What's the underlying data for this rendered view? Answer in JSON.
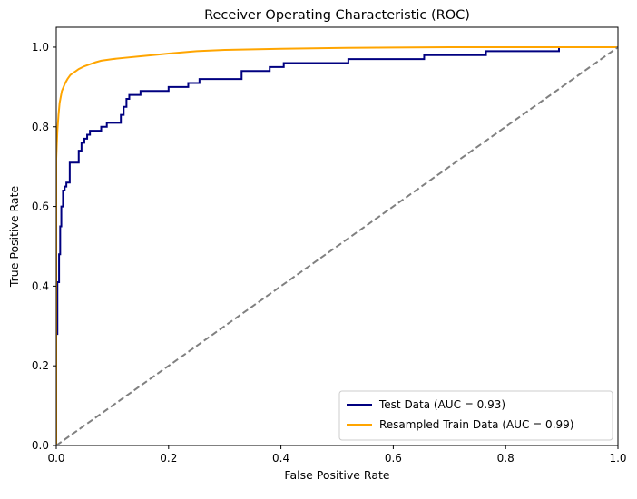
{
  "chart_data": {
    "type": "line",
    "title": "Receiver Operating Characteristic (ROC)",
    "xlabel": "False Positive Rate",
    "ylabel": "True Positive Rate",
    "xlim": [
      0.0,
      1.0
    ],
    "ylim": [
      0.0,
      1.05
    ],
    "xticks": [
      0.0,
      0.2,
      0.4,
      0.6,
      0.8,
      1.0
    ],
    "yticks": [
      0.0,
      0.2,
      0.4,
      0.6,
      0.8,
      1.0
    ],
    "xtick_labels": [
      "0.0",
      "0.2",
      "0.4",
      "0.6",
      "0.8",
      "1.0"
    ],
    "ytick_labels": [
      "0.0",
      "0.2",
      "0.4",
      "0.6",
      "0.8",
      "1.0"
    ],
    "grid": false,
    "legend_position": "lower-right",
    "series": [
      {
        "name": "Test Data (AUC = 0.93)",
        "color": "#000080",
        "style": "step",
        "x": [
          0.0,
          0.0,
          0.002,
          0.002,
          0.005,
          0.005,
          0.007,
          0.007,
          0.009,
          0.009,
          0.012,
          0.012,
          0.015,
          0.015,
          0.018,
          0.018,
          0.024,
          0.024,
          0.028,
          0.028,
          0.04,
          0.04,
          0.045,
          0.045,
          0.05,
          0.05,
          0.055,
          0.055,
          0.06,
          0.06,
          0.068,
          0.068,
          0.08,
          0.08,
          0.09,
          0.09,
          0.115,
          0.115,
          0.12,
          0.12,
          0.125,
          0.125,
          0.13,
          0.13,
          0.15,
          0.15,
          0.2,
          0.2,
          0.235,
          0.235,
          0.255,
          0.255,
          0.33,
          0.33,
          0.38,
          0.38,
          0.405,
          0.405,
          0.52,
          0.52,
          0.655,
          0.655,
          0.765,
          0.765,
          0.895,
          0.895,
          1.0
        ],
        "y": [
          0.0,
          0.28,
          0.28,
          0.41,
          0.41,
          0.48,
          0.48,
          0.55,
          0.55,
          0.6,
          0.6,
          0.64,
          0.64,
          0.65,
          0.65,
          0.66,
          0.66,
          0.71,
          0.71,
          0.71,
          0.71,
          0.74,
          0.74,
          0.76,
          0.76,
          0.77,
          0.77,
          0.78,
          0.78,
          0.79,
          0.79,
          0.79,
          0.79,
          0.8,
          0.8,
          0.81,
          0.81,
          0.83,
          0.83,
          0.85,
          0.85,
          0.87,
          0.87,
          0.88,
          0.88,
          0.89,
          0.89,
          0.9,
          0.9,
          0.91,
          0.91,
          0.92,
          0.92,
          0.94,
          0.94,
          0.95,
          0.95,
          0.96,
          0.96,
          0.97,
          0.97,
          0.98,
          0.98,
          0.99,
          0.99,
          1.0,
          1.0
        ]
      },
      {
        "name": "Resampled Train Data (AUC = 0.99)",
        "color": "#FFA500",
        "style": "line",
        "x": [
          0.0,
          0.0,
          0.0,
          0.002,
          0.004,
          0.006,
          0.008,
          0.01,
          0.013,
          0.016,
          0.02,
          0.025,
          0.03,
          0.035,
          0.04,
          0.05,
          0.06,
          0.07,
          0.08,
          0.1,
          0.12,
          0.15,
          0.18,
          0.2,
          0.25,
          0.3,
          0.4,
          0.5,
          0.6,
          0.7,
          0.8,
          0.9,
          1.0
        ],
        "y": [
          0.0,
          0.6,
          0.72,
          0.79,
          0.83,
          0.86,
          0.875,
          0.89,
          0.9,
          0.91,
          0.92,
          0.93,
          0.935,
          0.94,
          0.945,
          0.952,
          0.957,
          0.962,
          0.966,
          0.97,
          0.973,
          0.977,
          0.981,
          0.984,
          0.99,
          0.993,
          0.996,
          0.998,
          0.999,
          1.0,
          1.0,
          1.0,
          1.0
        ]
      },
      {
        "name": "",
        "color": "#808080",
        "style": "dashed",
        "x": [
          0.0,
          1.0
        ],
        "y": [
          0.0,
          1.0
        ]
      }
    ]
  }
}
